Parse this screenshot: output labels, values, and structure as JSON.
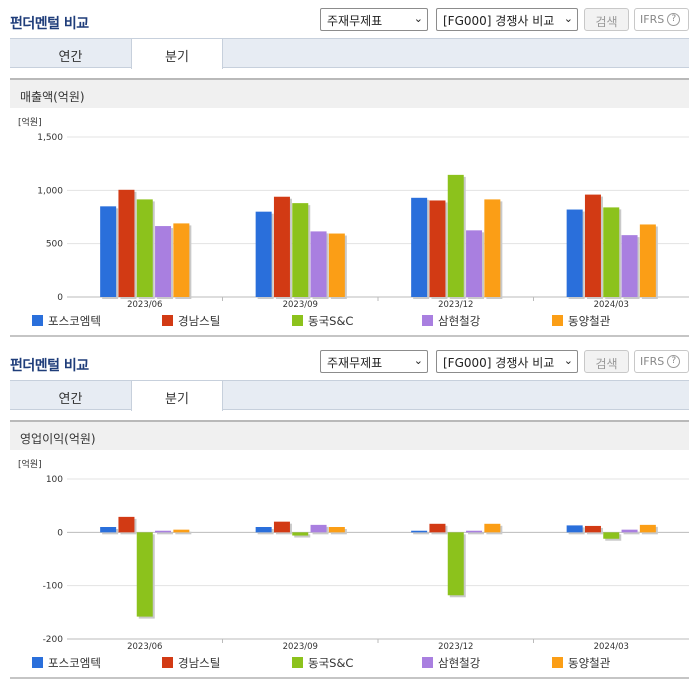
{
  "sections": [
    {
      "title": "펀더멘털 비교",
      "select1": "주재무제표",
      "select2": "[FG000] 경쟁사 비교",
      "search_btn": "검색",
      "ifrs_label": "IFRS",
      "ifrs_help": "?",
      "tabs": [
        "연간",
        "분기"
      ],
      "active_tab": 1,
      "chart_title": "매출액(억원)"
    },
    {
      "title": "펀더멘털 비교",
      "select1": "주재무제표",
      "select2": "[FG000] 경쟁사 비교",
      "search_btn": "검색",
      "ifrs_label": "IFRS",
      "ifrs_help": "?",
      "tabs": [
        "연간",
        "분기"
      ],
      "active_tab": 1,
      "chart_title": "영업이익(억원)"
    }
  ],
  "series_colors": [
    "#2a6fdb",
    "#d23a14",
    "#8cc21c",
    "#a97fe0",
    "#fb9e16"
  ],
  "chart_data": [
    {
      "type": "bar",
      "title": "매출액(억원)",
      "unit_label": "[억원]",
      "categories": [
        "2023/06",
        "2023/09",
        "2023/12",
        "2024/03"
      ],
      "ylim": [
        0,
        1500
      ],
      "yticks": [
        0,
        500,
        1000,
        1500
      ],
      "ytick_labels": [
        "0",
        "500",
        "1,000",
        "1,500"
      ],
      "grid": true,
      "legend_position": "bottom",
      "series": [
        {
          "name": "포스코엠텍",
          "values": [
            850,
            800,
            930,
            820
          ]
        },
        {
          "name": "경남스틸",
          "values": [
            1005,
            940,
            905,
            960
          ]
        },
        {
          "name": "동국S&C",
          "values": [
            915,
            880,
            1145,
            840
          ]
        },
        {
          "name": "삼현철강",
          "values": [
            665,
            615,
            625,
            580
          ]
        },
        {
          "name": "동양철관",
          "values": [
            690,
            595,
            915,
            680
          ]
        }
      ]
    },
    {
      "type": "bar",
      "title": "영업이익(억원)",
      "unit_label": "[억원]",
      "categories": [
        "2023/06",
        "2023/09",
        "2023/12",
        "2024/03"
      ],
      "ylim": [
        -200,
        100
      ],
      "yticks": [
        -200,
        -100,
        0,
        100
      ],
      "ytick_labels": [
        "-200",
        "-100",
        "0",
        "100"
      ],
      "grid": true,
      "legend_position": "bottom",
      "series": [
        {
          "name": "포스코엠텍",
          "values": [
            10,
            10,
            3,
            13
          ]
        },
        {
          "name": "경남스틸",
          "values": [
            29,
            20,
            16,
            12
          ]
        },
        {
          "name": "동국S&C",
          "values": [
            -158,
            -6,
            -118,
            -12
          ]
        },
        {
          "name": "삼현철강",
          "values": [
            3,
            14,
            3,
            5
          ]
        },
        {
          "name": "동양철관",
          "values": [
            5,
            10,
            16,
            14
          ]
        }
      ]
    }
  ]
}
